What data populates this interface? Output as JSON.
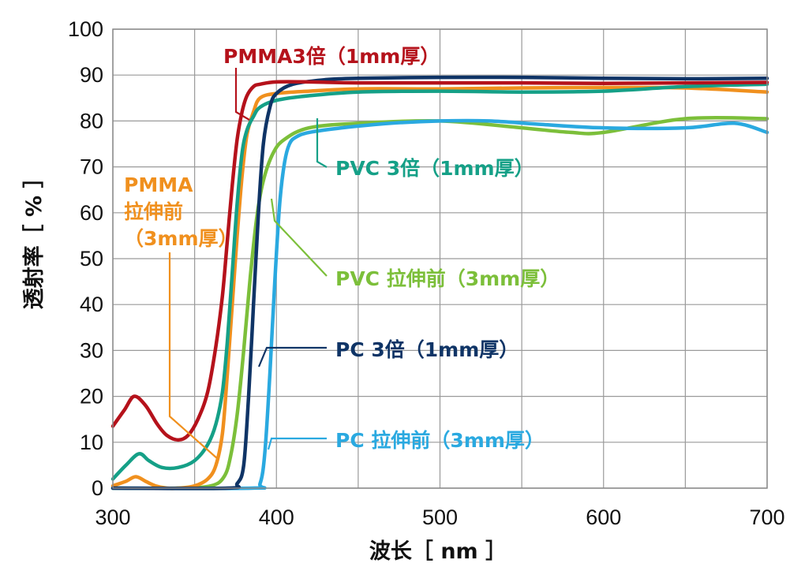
{
  "chart_data": {
    "type": "line",
    "xlabel": "波长［ nm ］",
    "ylabel": "透射率［ % ］",
    "xlim": [
      300,
      700
    ],
    "ylim": [
      0,
      100
    ],
    "x_ticks": [
      300,
      400,
      500,
      600,
      700
    ],
    "y_ticks": [
      0,
      10,
      20,
      30,
      40,
      50,
      60,
      70,
      80,
      90,
      100
    ],
    "grid": true,
    "legend": "none; each series is labeled by an annotation with a leader line",
    "series": [
      {
        "name": "PMMA3倍（1mm厚）",
        "label_lines": [
          "PMMA3倍（1mm厚）"
        ],
        "color": "#b5121b",
        "x": [
          300,
          307,
          313,
          320,
          327,
          333,
          340,
          346,
          352,
          358,
          363,
          367,
          370,
          373,
          376,
          379,
          382,
          386,
          390,
          400,
          420,
          450,
          500,
          550,
          600,
          650,
          700
        ],
        "y": [
          13.5,
          17,
          20,
          18,
          14,
          11.5,
          10.5,
          11.5,
          15,
          21,
          31,
          42,
          54,
          66,
          76,
          82,
          85.5,
          87.5,
          88,
          88.5,
          88.5,
          88.3,
          88.3,
          88.3,
          88.2,
          88.3,
          88.4
        ]
      },
      {
        "name": "PMMA 拉伸前（3mm厚）",
        "label_lines": [
          "PMMA",
          "拉伸前",
          "（3mm厚）"
        ],
        "color": "#f0901e",
        "x": [
          300,
          308,
          314,
          320,
          326,
          333,
          340,
          350,
          358,
          363,
          367,
          370,
          373,
          376,
          379,
          382,
          386,
          390,
          400,
          420,
          450,
          500,
          550,
          600,
          650,
          700
        ],
        "y": [
          0.5,
          1.5,
          2.5,
          1.5,
          0.5,
          0,
          0,
          0.5,
          2,
          5,
          12,
          25,
          40,
          55,
          68,
          77,
          82,
          85,
          86,
          86.5,
          87,
          87,
          87.2,
          87.3,
          87.2,
          86.3
        ]
      },
      {
        "name": "PVC 3倍（1mm厚）",
        "label_lines": [
          "PVC 3倍（1mm厚）"
        ],
        "color": "#15a087",
        "x": [
          300,
          308,
          316,
          322,
          330,
          340,
          350,
          358,
          363,
          367,
          370,
          373,
          376,
          379,
          382,
          386,
          390,
          400,
          420,
          450,
          500,
          550,
          600,
          650,
          700
        ],
        "y": [
          2,
          5,
          7.5,
          6,
          4.5,
          4.5,
          6,
          9.5,
          14,
          21,
          32,
          47,
          62,
          73,
          78,
          81,
          83,
          84.5,
          85.5,
          86.3,
          86.5,
          86.3,
          86.5,
          87.5,
          88
        ]
      },
      {
        "name": "PVC 拉伸前（3mm厚）",
        "label_lines": [
          "PVC 拉伸前（3mm厚）"
        ],
        "color": "#7cbf3a",
        "x": [
          300,
          340,
          360,
          368,
          372,
          376,
          380,
          384,
          388,
          392,
          398,
          405,
          420,
          450,
          500,
          550,
          580,
          600,
          650,
          700
        ],
        "y": [
          0,
          0,
          0.5,
          2.5,
          7,
          16,
          30,
          46,
          59,
          67,
          73,
          76,
          78.5,
          79.5,
          80,
          78.5,
          77.5,
          77.5,
          80.5,
          80.5
        ]
      },
      {
        "name": "PC 3倍（1mm厚）",
        "label_lines": [
          "PC 3倍（1mm厚）"
        ],
        "color": "#0f3466",
        "x": [
          300,
          370,
          376,
          380,
          383,
          386,
          389,
          392,
          396,
          400,
          410,
          430,
          450,
          500,
          550,
          600,
          650,
          700
        ],
        "y": [
          0,
          0,
          1,
          5,
          20,
          40,
          60,
          75,
          83,
          86,
          88,
          89,
          89.3,
          89.5,
          89.5,
          89.3,
          89.2,
          89.3
        ]
      },
      {
        "name": "PC 拉伸前（3mm厚）",
        "label_lines": [
          "PC 拉伸前（3mm厚）"
        ],
        "color": "#2aa9e0",
        "x": [
          300,
          385,
          390,
          393,
          396,
          399,
          402,
          405,
          408,
          412,
          420,
          440,
          470,
          500,
          530,
          560,
          600,
          650,
          680,
          700
        ],
        "y": [
          0,
          0,
          1,
          8,
          25,
          45,
          62,
          71,
          75,
          76.5,
          77.5,
          78.5,
          79.5,
          80,
          80,
          79.3,
          78.5,
          78.5,
          79.5,
          77.5
        ]
      }
    ]
  }
}
